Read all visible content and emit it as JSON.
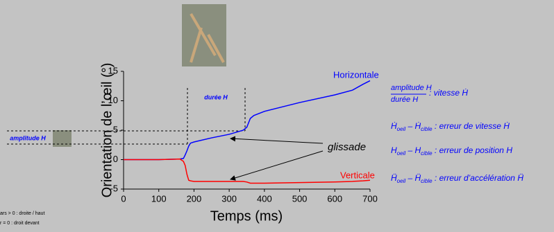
{
  "chart_data": {
    "type": "line",
    "xlabel": "Temps (ms)",
    "ylabel": "Orientation de l’œil (°)",
    "x": [
      0,
      100,
      160,
      170,
      175,
      180,
      185,
      190,
      200,
      250,
      300,
      340,
      350,
      360,
      370,
      400,
      500,
      600,
      650,
      680,
      700
    ],
    "series": [
      {
        "name": "Horizontale",
        "color": "#0000ff",
        "values": [
          0,
          0,
          0.1,
          0.2,
          0.8,
          1.5,
          2.3,
          2.8,
          3,
          3.7,
          4.3,
          5,
          5.5,
          7,
          7.5,
          8.2,
          9.7,
          11,
          11.8,
          12.8,
          13.4
        ]
      },
      {
        "name": "Verticale",
        "color": "#ff0000",
        "values": [
          0,
          0,
          0.1,
          -0.3,
          -1,
          -2.5,
          -3.5,
          -3.6,
          -3.7,
          -3.7,
          -3.7,
          -3.7,
          -3.8,
          -4,
          -4,
          -4,
          -3.9,
          -3.8,
          -3.7,
          -3.6,
          -3.5
        ]
      }
    ],
    "xlim": [
      0,
      700
    ],
    "xticks": [
      0,
      100,
      200,
      300,
      400,
      500,
      600,
      700
    ],
    "ylim": [
      -5,
      15
    ],
    "yticks": [
      15,
      10,
      5,
      0,
      -5
    ],
    "grid": false
  },
  "slide": {
    "duree": "durée H",
    "amplitude": "amplitude H",
    "glissade": "glissade",
    "fraction": {
      "num": "amplitude H",
      "den": "durée H",
      "text": ": vitesse Ḣ"
    },
    "rows": [
      {
        "a": "Ḣ",
        "a_sub": "oeil",
        "minus": " – ",
        "b": "Ḣ",
        "b_sub": "cible",
        "text": " : erreur de vitesse Ḣ"
      },
      {
        "a": "H",
        "a_sub": "oeil",
        "minus": " – ",
        "b": "H",
        "b_sub": "cible",
        "text": " : erreur de position H"
      },
      {
        "a": "Ḧ",
        "a_sub": "oeil",
        "minus": " – ",
        "b": "Ḧ",
        "b_sub": "cible",
        "text": " : erreur d’accélération Ḧ"
      }
    ],
    "notes": [
      "ars > 0 : droite / haut",
      "r = 0 : droit devant"
    ]
  }
}
